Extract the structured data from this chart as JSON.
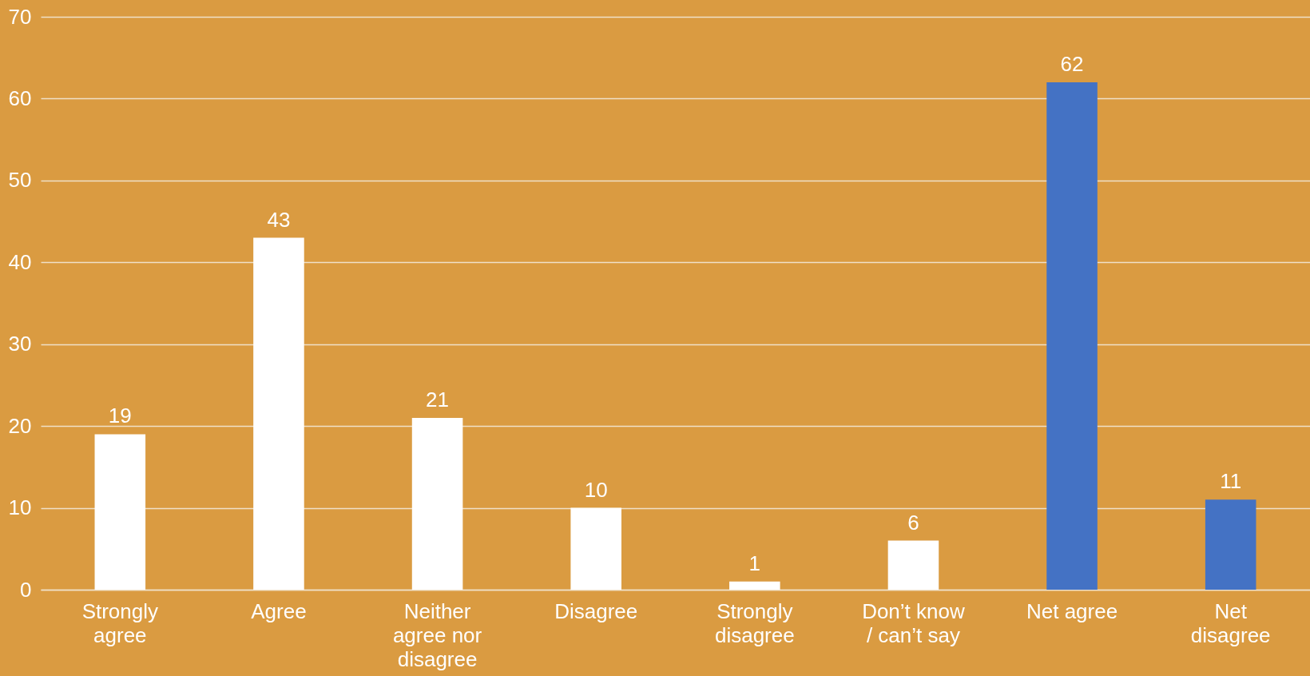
{
  "chart_data": {
    "type": "bar",
    "categories": [
      "Strongly agree",
      "Agree",
      "Neither agree nor disagree",
      "Disagree",
      "Strongly disagree",
      "Don’t know / can’t say",
      "Net agree",
      "Net disagree"
    ],
    "values": [
      19,
      43,
      21,
      10,
      1,
      6,
      62,
      11
    ],
    "colors": [
      "#ffffff",
      "#ffffff",
      "#ffffff",
      "#ffffff",
      "#ffffff",
      "#ffffff",
      "#4472c4",
      "#4472c4"
    ],
    "ylim": [
      0,
      70
    ],
    "yticks": [
      0,
      10,
      20,
      30,
      40,
      50,
      60,
      70
    ],
    "grid": "y",
    "data_labels": true
  }
}
